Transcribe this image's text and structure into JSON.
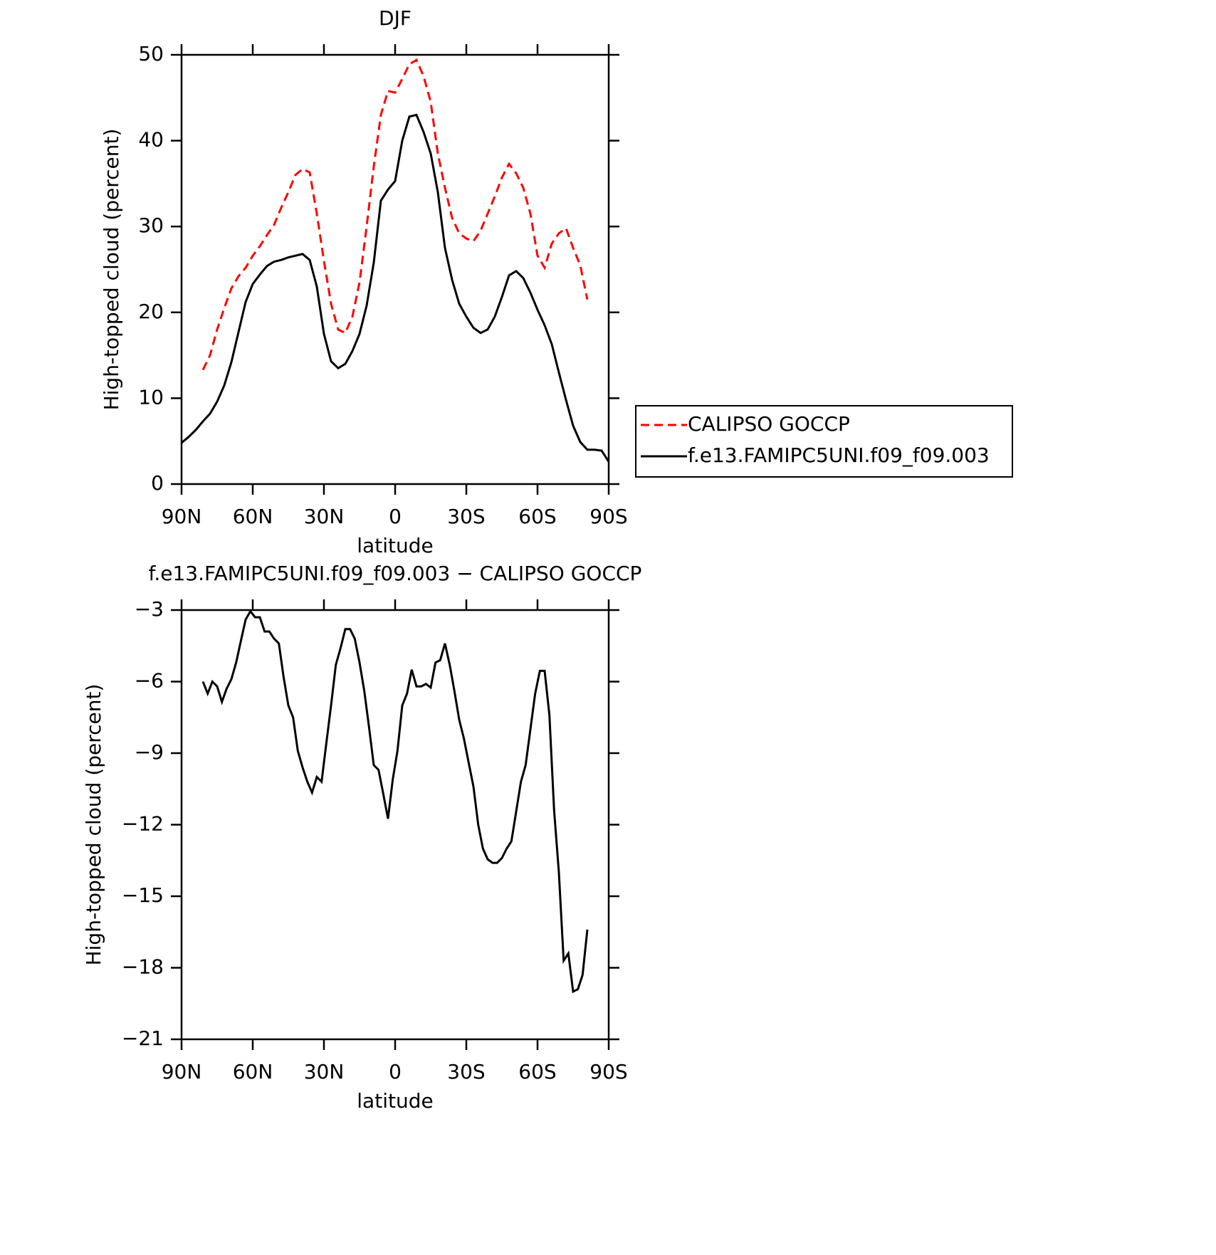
{
  "chart_data": [
    {
      "type": "line",
      "title": "DJF",
      "xlabel": "latitude",
      "ylabel": "High-topped cloud (percent)",
      "x": [
        90,
        87,
        84,
        81,
        78,
        75,
        72,
        69,
        66,
        63,
        60,
        57,
        54,
        51,
        48,
        45,
        42,
        39,
        36,
        33,
        30,
        27,
        24,
        21,
        18,
        15,
        12,
        9,
        6,
        3,
        0,
        -3,
        -6,
        -9,
        -12,
        -15,
        -18,
        -21,
        -24,
        -27,
        -30,
        -33,
        -36,
        -39,
        -42,
        -45,
        -48,
        -51,
        -54,
        -57,
        -60,
        -63,
        -66,
        -69,
        -72,
        -75,
        -78,
        -81,
        -84,
        -87,
        -90
      ],
      "series": [
        {
          "name": "CALIPSO GOCCP",
          "color": "#ff0000",
          "linestyle": "dashed",
          "values": [
            null,
            null,
            null,
            13.3,
            15,
            18,
            20.5,
            22.8,
            24.2,
            25.2,
            26.6,
            27.7,
            29,
            30.2,
            32.2,
            34,
            36,
            36.7,
            36.3,
            31.5,
            26,
            21,
            18,
            17.6,
            19.5,
            23.5,
            30,
            37,
            43,
            45.8,
            45.6,
            47.2,
            48.9,
            49.4,
            47.5,
            44.5,
            38.5,
            34.5,
            31,
            29.2,
            28.6,
            28.3,
            29.5,
            31.5,
            33.5,
            35.7,
            37.3,
            36.2,
            34.5,
            31.5,
            26.6,
            25.2,
            28,
            29.2,
            29.8,
            27.5,
            25.5,
            21.5,
            null,
            null,
            null
          ]
        },
        {
          "name": "f.e13.FAMIPC5UNI.f09_f09.003",
          "color": "#000000",
          "linestyle": "solid",
          "values": [
            4.8,
            5.5,
            6.3,
            7.3,
            8.2,
            9.6,
            11.5,
            14.2,
            17.7,
            21.2,
            23.3,
            24.4,
            25.4,
            25.9,
            26.1,
            26.4,
            26.6,
            26.8,
            26.1,
            23,
            17.5,
            14.3,
            13.5,
            14,
            15.5,
            17.5,
            20.8,
            25.8,
            33,
            34.3,
            35.3,
            40,
            42.8,
            43,
            41,
            38.5,
            34,
            27.5,
            23.8,
            21,
            19.5,
            18.2,
            17.6,
            18,
            19.5,
            21.8,
            24.3,
            24.8,
            24,
            22.3,
            20.3,
            18.5,
            16.3,
            13,
            9.8,
            6.8,
            4.9,
            4,
            4,
            3.9,
            2.6
          ]
        }
      ],
      "xlim": [
        90,
        -90
      ],
      "ylim": [
        0,
        50
      ],
      "xticks": [
        {
          "value": 90,
          "label": "90N"
        },
        {
          "value": 60,
          "label": "60N"
        },
        {
          "value": 30,
          "label": "30N"
        },
        0,
        {
          "value": -30,
          "label": "30S"
        },
        {
          "value": -60,
          "label": "60S"
        },
        {
          "value": -90,
          "label": "90S"
        }
      ],
      "yticks": [
        0,
        10,
        20,
        30,
        40,
        50
      ],
      "legend": "right"
    },
    {
      "type": "line",
      "title": "f.e13.FAMIPC5UNI.f09_f09.003 − CALIPSO GOCCP",
      "xlabel": "latitude",
      "ylabel": "High-topped cloud (percent)",
      "x": [
        81,
        79,
        77,
        75,
        73,
        71,
        69,
        67,
        65,
        63,
        61,
        59,
        57,
        55,
        53,
        51,
        49,
        47,
        45,
        43,
        41,
        39,
        37,
        35,
        33,
        31,
        29,
        27,
        25,
        23,
        21,
        19,
        17,
        15,
        13,
        11,
        9,
        7,
        5,
        3,
        1,
        -1,
        -3,
        -5,
        -7,
        -9,
        -11,
        -13,
        -15,
        -17,
        -19,
        -21,
        -23,
        -25,
        -27,
        -29,
        -31,
        -33,
        -35,
        -37,
        -39,
        -41,
        -43,
        -45,
        -47,
        -49,
        -51,
        -53,
        -55,
        -57,
        -59,
        -61,
        -63,
        -65,
        -67,
        -69,
        -71,
        -73,
        -75,
        -77,
        -79,
        -81
      ],
      "series": [
        {
          "color": "#000000",
          "linestyle": "solid",
          "values": [
            -6,
            -6.5,
            -6,
            -6.2,
            -6.85,
            -6.3,
            -5.9,
            -5.2,
            -4.3,
            -3.4,
            -3.05,
            -3.3,
            -3.3,
            -3.9,
            -3.9,
            -4.2,
            -4.4,
            -5.8,
            -7,
            -7.5,
            -8.9,
            -9.6,
            -10.2,
            -10.65,
            -10,
            -10.2,
            -8.6,
            -7,
            -5.3,
            -4.6,
            -3.8,
            -3.8,
            -4.2,
            -5.2,
            -6.4,
            -7.9,
            -9.5,
            -9.7,
            -10.7,
            -11.75,
            -10.1,
            -8.9,
            -7,
            -6.5,
            -5.5,
            -6.2,
            -6.2,
            -6.1,
            -6.25,
            -5.2,
            -5.1,
            -4.4,
            -5.3,
            -6.4,
            -7.6,
            -8.4,
            -9.4,
            -10.4,
            -12,
            -13,
            -13.45,
            -13.6,
            -13.6,
            -13.4,
            -13,
            -12.7,
            -11.45,
            -10.2,
            -9.5,
            -8,
            -6.5,
            -5.55,
            -5.55,
            -7.4,
            -11.4,
            -14,
            -17.7,
            -17.4,
            -19,
            -18.9,
            -18.3,
            -16.4
          ]
        }
      ],
      "xlim": [
        90,
        -90
      ],
      "ylim": [
        -21,
        -3
      ],
      "xticks": [
        {
          "value": 90,
          "label": "90N"
        },
        {
          "value": 60,
          "label": "60N"
        },
        {
          "value": 30,
          "label": "30N"
        },
        0,
        {
          "value": -30,
          "label": "30S"
        },
        {
          "value": -60,
          "label": "60S"
        },
        {
          "value": -90,
          "label": "90S"
        }
      ],
      "yticks": [
        {
          "value": -21,
          "label": "−21"
        },
        {
          "value": -18,
          "label": "−18"
        },
        {
          "value": -15,
          "label": "−15"
        },
        {
          "value": -12,
          "label": "−12"
        },
        {
          "value": -9,
          "label": "−9"
        },
        {
          "value": -6,
          "label": "−6"
        },
        {
          "value": -3,
          "label": "−3"
        }
      ]
    }
  ]
}
